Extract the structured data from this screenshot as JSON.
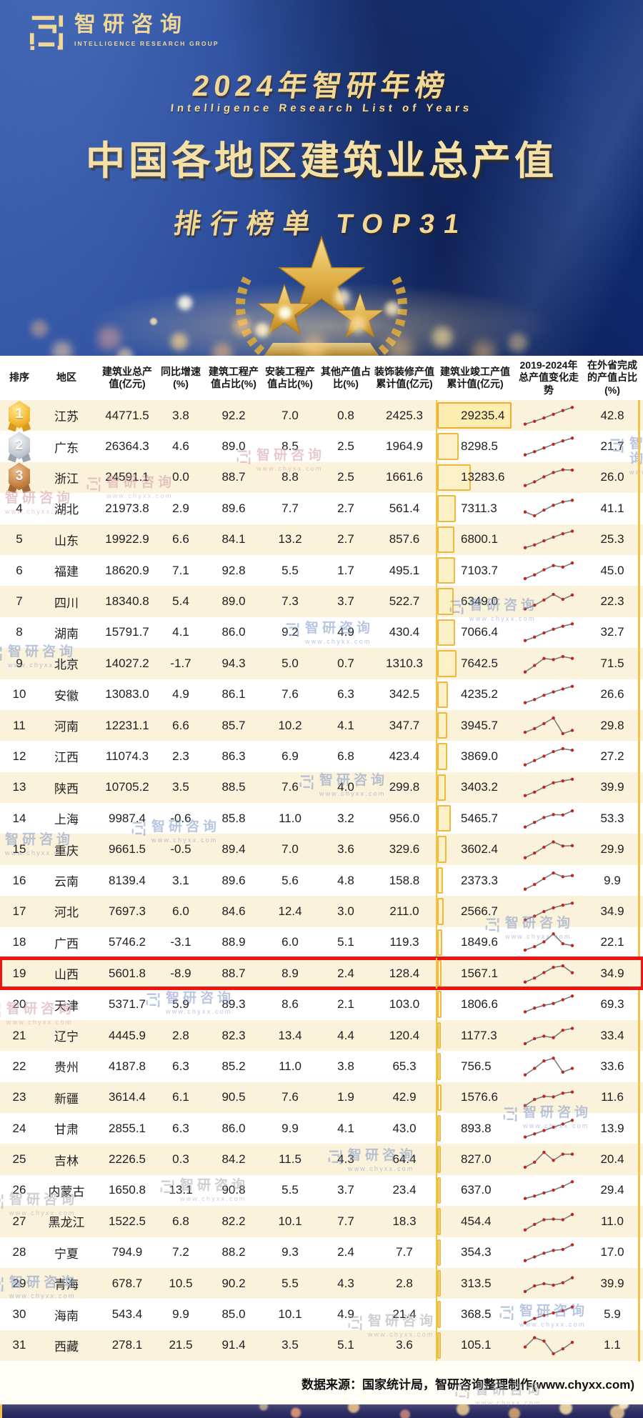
{
  "brand": {
    "logo_text": "智研咨询",
    "logo_subtext": "INTELLIGENCE RESEARCH GROUP"
  },
  "header": {
    "year_title": "2024年智研年榜",
    "english_title": "Intelligence Research List of Years",
    "main_title": "中国各地区建筑业总产值",
    "sub_title": "排行榜单 TOP31"
  },
  "watermark": {
    "text": "智研咨询",
    "url": "www.chyxx.com"
  },
  "footer": {
    "source_text": "数据来源：国家统计局，智研咨询整理制作(www.chyxx.com)"
  },
  "colors": {
    "background_blue": "#16317f",
    "title_gold": "#f2d795",
    "row_alt_cream": "#fbf2dc",
    "bar_fill": "#fbf0c6",
    "bar_border": "#efb93f",
    "gold_line": "#f3c24a",
    "highlight_red": "#ec1510",
    "spark_line": "#7d7d7d",
    "spark_dot": "#c0251f",
    "medal_gold": "#f2b42e",
    "medal_silver": "#c3c9d2",
    "medal_bronze": "#c5803f"
  },
  "chart_data": {
    "type": "table",
    "title": "2024年智研年榜 中国各地区建筑业总产值 排行榜单 TOP31",
    "highlight_rank": 19,
    "completed_bar_max": 29235.4,
    "trend_note": "trend = 2019-2024 total output relative levels (0-100), shown as sparkline",
    "columns": [
      "排序",
      "地区",
      "建筑业总产值(亿元)",
      "同比增速(%)",
      "建筑工程产值占比(%)",
      "安装工程产值占比(%)",
      "其他产值占比(%)",
      "装饰装修产值累计值(亿元)",
      "建筑业竣工产值累计值(亿元)",
      "2019-2024年总产值变化走势",
      "在外省完成的产值占比(%)"
    ],
    "rows": [
      {
        "rank": 1,
        "medal": "gold",
        "region": "江苏",
        "total": "44771.5",
        "yoy": "3.8",
        "construction": "92.2",
        "installation": "7.0",
        "other": "0.8",
        "decoration": "2425.3",
        "completed": "29235.4",
        "trend": [
          5,
          20,
          38,
          58,
          78,
          95
        ],
        "outside": "42.8"
      },
      {
        "rank": 2,
        "medal": "silver",
        "region": "广东",
        "total": "26364.3",
        "yoy": "4.6",
        "construction": "89.0",
        "installation": "8.5",
        "other": "2.5",
        "decoration": "1964.9",
        "completed": "8298.5",
        "trend": [
          5,
          22,
          42,
          62,
          80,
          95
        ],
        "outside": "21.7"
      },
      {
        "rank": 3,
        "medal": "bronze",
        "region": "浙江",
        "total": "24591.1",
        "yoy": "0.0",
        "construction": "88.7",
        "installation": "8.8",
        "other": "2.5",
        "decoration": "1661.6",
        "completed": "13283.6",
        "trend": [
          5,
          25,
          52,
          75,
          90,
          88
        ],
        "outside": "26.0"
      },
      {
        "rank": 4,
        "medal": null,
        "region": "湖北",
        "total": "21973.8",
        "yoy": "2.9",
        "construction": "89.6",
        "installation": "7.7",
        "other": "2.7",
        "decoration": "561.4",
        "completed": "7311.3",
        "trend": [
          32,
          12,
          42,
          68,
          86,
          95
        ],
        "outside": "41.1"
      },
      {
        "rank": 5,
        "medal": null,
        "region": "山东",
        "total": "19922.9",
        "yoy": "6.6",
        "construction": "84.1",
        "installation": "13.2",
        "other": "2.7",
        "decoration": "857.6",
        "completed": "6800.1",
        "trend": [
          5,
          20,
          42,
          62,
          80,
          94
        ],
        "outside": "25.3"
      },
      {
        "rank": 6,
        "medal": null,
        "region": "福建",
        "total": "18620.9",
        "yoy": "7.1",
        "construction": "92.8",
        "installation": "5.5",
        "other": "1.7",
        "decoration": "495.1",
        "completed": "7103.7",
        "trend": [
          8,
          28,
          55,
          78,
          70,
          92
        ],
        "outside": "45.0"
      },
      {
        "rank": 7,
        "medal": null,
        "region": "四川",
        "total": "18340.8",
        "yoy": "5.4",
        "construction": "89.0",
        "installation": "7.3",
        "other": "3.7",
        "decoration": "522.7",
        "completed": "6349.0",
        "trend": [
          10,
          30,
          58,
          88,
          62,
          85
        ],
        "outside": "22.3"
      },
      {
        "rank": 8,
        "medal": null,
        "region": "湖南",
        "total": "15791.7",
        "yoy": "4.1",
        "construction": "86.0",
        "installation": "9.2",
        "other": "4.9",
        "decoration": "430.4",
        "completed": "7066.4",
        "trend": [
          5,
          24,
          46,
          66,
          82,
          95
        ],
        "outside": "32.7"
      },
      {
        "rank": 9,
        "medal": null,
        "region": "北京",
        "total": "14027.2",
        "yoy": "-1.7",
        "construction": "94.3",
        "installation": "5.0",
        "other": "0.7",
        "decoration": "1310.3",
        "completed": "7642.5",
        "trend": [
          5,
          40,
          78,
          72,
          88,
          78
        ],
        "outside": "71.5"
      },
      {
        "rank": 10,
        "medal": null,
        "region": "安徽",
        "total": "13083.0",
        "yoy": "4.9",
        "construction": "86.1",
        "installation": "7.6",
        "other": "6.3",
        "decoration": "342.5",
        "completed": "4235.2",
        "trend": [
          5,
          22,
          45,
          63,
          79,
          93
        ],
        "outside": "26.6"
      },
      {
        "rank": 11,
        "medal": null,
        "region": "河南",
        "total": "12231.1",
        "yoy": "6.6",
        "construction": "85.7",
        "installation": "10.2",
        "other": "4.1",
        "decoration": "347.7",
        "completed": "3945.7",
        "trend": [
          15,
          35,
          62,
          92,
          8,
          25
        ],
        "outside": "29.8"
      },
      {
        "rank": 12,
        "medal": null,
        "region": "江西",
        "total": "11074.3",
        "yoy": "2.3",
        "construction": "86.3",
        "installation": "6.9",
        "other": "6.8",
        "decoration": "423.4",
        "completed": "3869.0",
        "trend": [
          5,
          28,
          52,
          76,
          92,
          84
        ],
        "outside": "27.2"
      },
      {
        "rank": 13,
        "medal": null,
        "region": "陕西",
        "total": "10705.2",
        "yoy": "3.5",
        "construction": "88.5",
        "installation": "7.6",
        "other": "4.0",
        "decoration": "299.8",
        "completed": "3403.2",
        "trend": [
          5,
          24,
          50,
          74,
          84,
          93
        ],
        "outside": "39.9"
      },
      {
        "rank": 14,
        "medal": null,
        "region": "上海",
        "total": "9987.4",
        "yoy": "-0.6",
        "construction": "85.8",
        "installation": "11.0",
        "other": "3.2",
        "decoration": "956.0",
        "completed": "5465.7",
        "trend": [
          5,
          30,
          56,
          72,
          70,
          92
        ],
        "outside": "53.3"
      },
      {
        "rank": 15,
        "medal": null,
        "region": "重庆",
        "total": "9661.5",
        "yoy": "-0.5",
        "construction": "89.4",
        "installation": "7.0",
        "other": "3.6",
        "decoration": "329.6",
        "completed": "3602.4",
        "trend": [
          5,
          30,
          62,
          90,
          68,
          70
        ],
        "outside": "29.9"
      },
      {
        "rank": 16,
        "medal": null,
        "region": "云南",
        "total": "8139.4",
        "yoy": "3.1",
        "construction": "89.6",
        "installation": "5.6",
        "other": "4.8",
        "decoration": "158.8",
        "completed": "2373.3",
        "trend": [
          5,
          30,
          62,
          92,
          72,
          78
        ],
        "outside": "9.9"
      },
      {
        "rank": 17,
        "medal": null,
        "region": "河北",
        "total": "7697.3",
        "yoy": "6.0",
        "construction": "84.6",
        "installation": "12.4",
        "other": "3.0",
        "decoration": "211.0",
        "completed": "2566.7",
        "trend": [
          5,
          25,
          50,
          70,
          84,
          95
        ],
        "outside": "34.9"
      },
      {
        "rank": 18,
        "medal": null,
        "region": "广西",
        "total": "5746.2",
        "yoy": "-3.1",
        "construction": "88.9",
        "installation": "6.0",
        "other": "5.1",
        "decoration": "119.3",
        "completed": "1849.6",
        "trend": [
          8,
          26,
          52,
          95,
          42,
          32
        ],
        "outside": "22.1"
      },
      {
        "rank": 19,
        "medal": null,
        "region": "山西",
        "total": "5601.8",
        "yoy": "-8.9",
        "construction": "88.7",
        "installation": "8.9",
        "other": "2.4",
        "decoration": "128.4",
        "completed": "1567.1",
        "trend": [
          5,
          26,
          56,
          84,
          92,
          55
        ],
        "outside": "34.9"
      },
      {
        "rank": 20,
        "medal": null,
        "region": "天津",
        "total": "5371.7",
        "yoy": "5.9",
        "construction": "89.3",
        "installation": "8.6",
        "other": "2.1",
        "decoration": "103.0",
        "completed": "1806.6",
        "trend": [
          10,
          30,
          45,
          55,
          75,
          95
        ],
        "outside": "69.3"
      },
      {
        "rank": 21,
        "medal": null,
        "region": "辽宁",
        "total": "4445.9",
        "yoy": "2.8",
        "construction": "82.3",
        "installation": "13.4",
        "other": "4.4",
        "decoration": "120.4",
        "completed": "1177.3",
        "trend": [
          8,
          35,
          48,
          40,
          80,
          90
        ],
        "outside": "33.4"
      },
      {
        "rank": 22,
        "medal": null,
        "region": "贵州",
        "total": "4187.8",
        "yoy": "6.3",
        "construction": "85.2",
        "installation": "11.0",
        "other": "3.8",
        "decoration": "65.3",
        "completed": "756.5",
        "trend": [
          5,
          40,
          80,
          95,
          20,
          40
        ],
        "outside": "33.6"
      },
      {
        "rank": 23,
        "medal": null,
        "region": "新疆",
        "total": "3614.4",
        "yoy": "6.1",
        "construction": "90.5",
        "installation": "7.6",
        "other": "1.9",
        "decoration": "42.9",
        "completed": "1576.6",
        "trend": [
          5,
          38,
          55,
          52,
          72,
          78
        ],
        "outside": "11.6"
      },
      {
        "rank": 24,
        "medal": null,
        "region": "甘肃",
        "total": "2855.1",
        "yoy": "6.3",
        "construction": "86.0",
        "installation": "9.9",
        "other": "4.1",
        "decoration": "43.0",
        "completed": "893.8",
        "trend": [
          5,
          22,
          40,
          58,
          75,
          95
        ],
        "outside": "13.9"
      },
      {
        "rank": 25,
        "medal": null,
        "region": "吉林",
        "total": "2226.5",
        "yoy": "0.3",
        "construction": "84.2",
        "installation": "11.5",
        "other": "4.3",
        "decoration": "64.4",
        "completed": "827.0",
        "trend": [
          8,
          35,
          88,
          45,
          78,
          78
        ],
        "outside": "20.4"
      },
      {
        "rank": 26,
        "medal": null,
        "region": "内蒙古",
        "total": "1650.8",
        "yoy": "13.1",
        "construction": "90.8",
        "installation": "5.5",
        "other": "3.7",
        "decoration": "23.4",
        "completed": "637.0",
        "trend": [
          5,
          18,
          35,
          50,
          70,
          95
        ],
        "outside": "29.4"
      },
      {
        "rank": 27,
        "medal": null,
        "region": "黑龙江",
        "total": "1522.5",
        "yoy": "6.8",
        "construction": "82.2",
        "installation": "10.1",
        "other": "7.7",
        "decoration": "18.3",
        "completed": "454.4",
        "trend": [
          5,
          35,
          60,
          63,
          60,
          88
        ],
        "outside": "11.0"
      },
      {
        "rank": 28,
        "medal": null,
        "region": "宁夏",
        "total": "794.9",
        "yoy": "7.2",
        "construction": "88.2",
        "installation": "9.3",
        "other": "2.4",
        "decoration": "7.7",
        "completed": "354.3",
        "trend": [
          5,
          25,
          45,
          60,
          65,
          90
        ],
        "outside": "17.0"
      },
      {
        "rank": 29,
        "medal": null,
        "region": "青海",
        "total": "678.7",
        "yoy": "10.5",
        "construction": "90.2",
        "installation": "5.5",
        "other": "4.3",
        "decoration": "2.8",
        "completed": "313.5",
        "trend": [
          8,
          38,
          50,
          42,
          55,
          82
        ],
        "outside": "39.9"
      },
      {
        "rank": 30,
        "medal": null,
        "region": "海南",
        "total": "543.4",
        "yoy": "9.9",
        "construction": "85.0",
        "installation": "10.1",
        "other": "4.9",
        "decoration": "21.4",
        "completed": "368.5",
        "trend": [
          5,
          28,
          45,
          58,
          70,
          90
        ],
        "outside": "5.9"
      },
      {
        "rank": 31,
        "medal": null,
        "region": "西藏",
        "total": "278.1",
        "yoy": "21.5",
        "construction": "91.4",
        "installation": "3.5",
        "other": "5.1",
        "decoration": "3.6",
        "completed": "105.1",
        "trend": [
          40,
          90,
          72,
          4,
          30,
          65
        ],
        "outside": "1.1"
      }
    ]
  }
}
